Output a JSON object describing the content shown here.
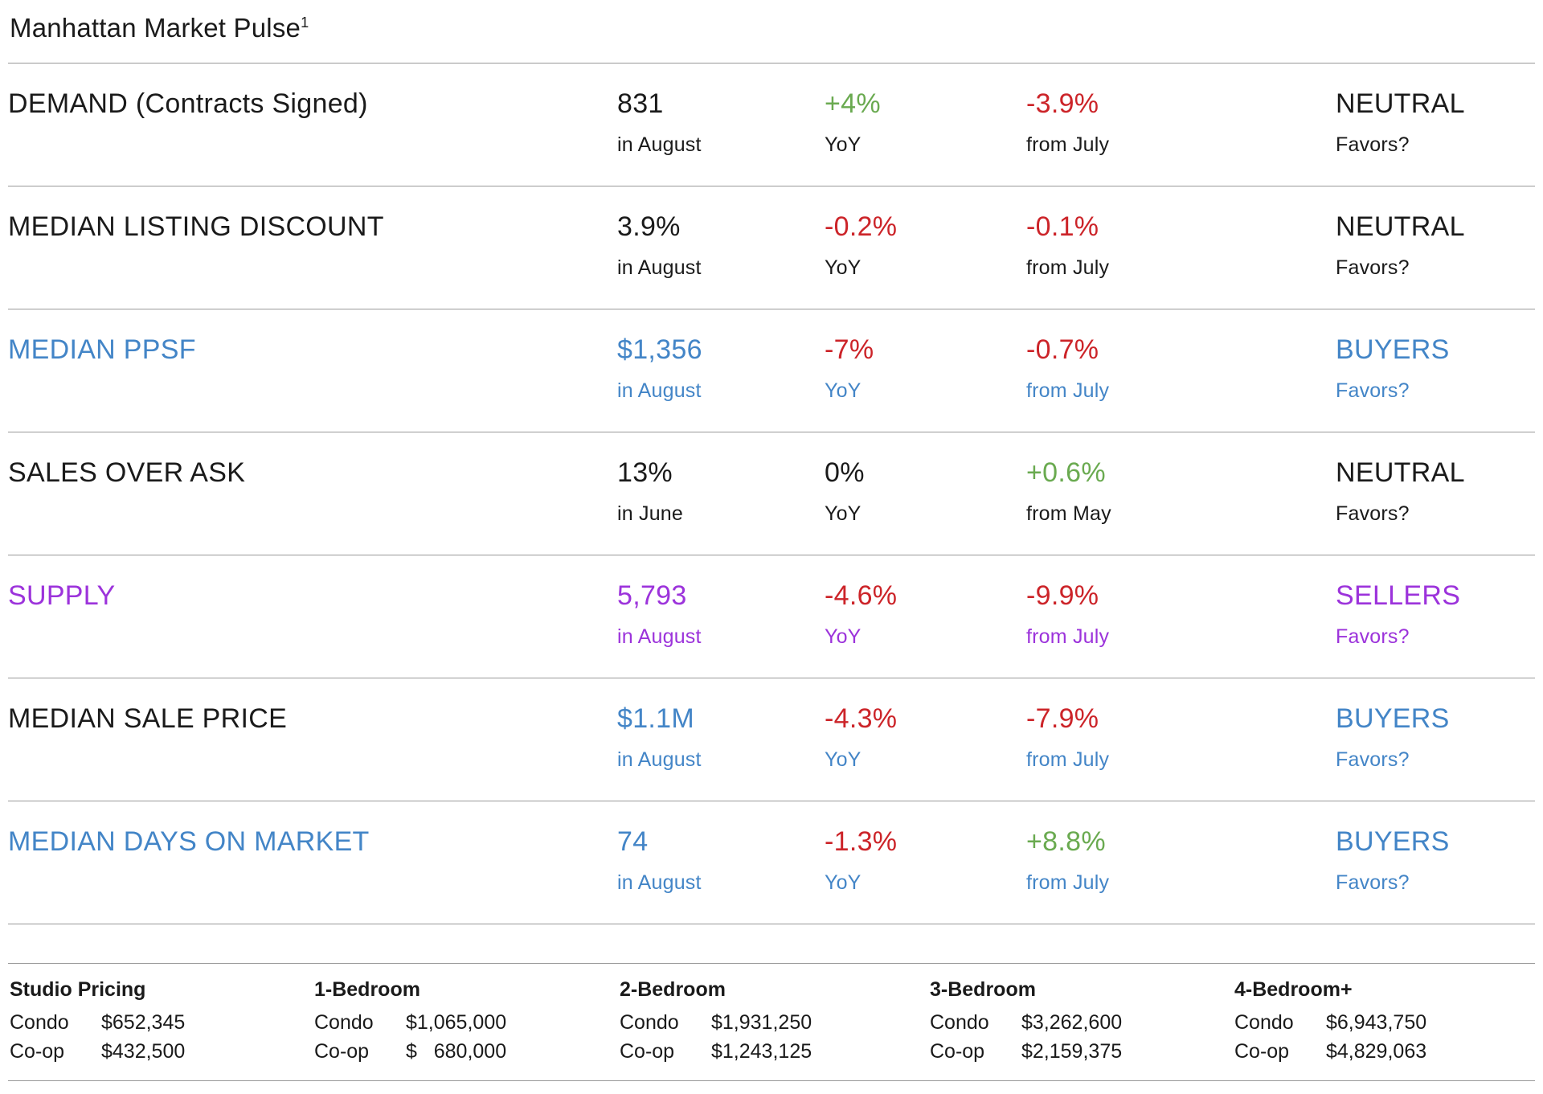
{
  "title": "Manhattan Market Pulse",
  "title_superscript": "1",
  "colors": {
    "black": "#1a1a1a",
    "blue": "#4385c7",
    "purple": "#9c33db",
    "green": "#6aaa50",
    "red": "#cc2429"
  },
  "metrics": [
    {
      "name": "DEMAND (Contracts Signed)",
      "name_color": "black",
      "value": "831",
      "value_color": "black",
      "period": "in August",
      "yoy": "+4%",
      "yoy_color": "green",
      "yoy_label": "YoY",
      "mom": "-3.9%",
      "mom_color": "red",
      "mom_label": "from July",
      "favors": "NEUTRAL",
      "favors_color": "black",
      "favors_label": "Favors?",
      "label_color": "black"
    },
    {
      "name": "MEDIAN LISTING DISCOUNT",
      "name_color": "black",
      "value": "3.9%",
      "value_color": "black",
      "period": "in August",
      "yoy": "-0.2%",
      "yoy_color": "red",
      "yoy_label": "YoY",
      "mom": "-0.1%",
      "mom_color": "red",
      "mom_label": "from July",
      "favors": "NEUTRAL",
      "favors_color": "black",
      "favors_label": "Favors?",
      "label_color": "black"
    },
    {
      "name": "MEDIAN PPSF",
      "name_color": "blue",
      "value": "$1,356",
      "value_color": "blue",
      "period": "in August",
      "yoy": "-7%",
      "yoy_color": "red",
      "yoy_label": "YoY",
      "mom": "-0.7%",
      "mom_color": "red",
      "mom_label": "from July",
      "favors": "BUYERS",
      "favors_color": "blue",
      "favors_label": "Favors?",
      "label_color": "blue"
    },
    {
      "name": "SALES OVER ASK",
      "name_color": "black",
      "value": "13%",
      "value_color": "black",
      "period": "in June",
      "yoy": "0%",
      "yoy_color": "black",
      "yoy_label": "YoY",
      "mom": "+0.6%",
      "mom_color": "green",
      "mom_label": "from May",
      "favors": "NEUTRAL",
      "favors_color": "black",
      "favors_label": "Favors?",
      "label_color": "black"
    },
    {
      "name": "SUPPLY",
      "name_color": "purple",
      "value": "5,793",
      "value_color": "purple",
      "period": "in August",
      "yoy": "-4.6%",
      "yoy_color": "red",
      "yoy_label": "YoY",
      "mom": "-9.9%",
      "mom_color": "red",
      "mom_label": "from July",
      "favors": "SELLERS",
      "favors_color": "purple",
      "favors_label": "Favors?",
      "label_color": "purple"
    },
    {
      "name": "MEDIAN SALE PRICE",
      "name_color": "black",
      "value": "$1.1M",
      "value_color": "blue",
      "period": "in August",
      "yoy": "-4.3%",
      "yoy_color": "red",
      "yoy_label": "YoY",
      "mom": "-7.9%",
      "mom_color": "red",
      "mom_label": "from July",
      "favors": "BUYERS",
      "favors_color": "blue",
      "favors_label": "Favors?",
      "label_color": "blue"
    },
    {
      "name": "MEDIAN DAYS ON MARKET",
      "name_color": "blue",
      "value": "74",
      "value_color": "blue",
      "period": "in August",
      "yoy": "-1.3%",
      "yoy_color": "red",
      "yoy_label": "YoY",
      "mom": "+8.8%",
      "mom_color": "green",
      "mom_label": "from July",
      "favors": "BUYERS",
      "favors_color": "blue",
      "favors_label": "Favors?",
      "label_color": "blue"
    }
  ],
  "pricing": [
    {
      "header": "Studio Pricing",
      "rows": [
        {
          "label": "Condo",
          "price": "$652,345"
        },
        {
          "label": "Co-op",
          "price": "$432,500"
        }
      ]
    },
    {
      "header": "1-Bedroom",
      "rows": [
        {
          "label": "Condo",
          "price": "$1,065,000"
        },
        {
          "label": "Co-op",
          "price": "$   680,000"
        }
      ]
    },
    {
      "header": "2-Bedroom",
      "rows": [
        {
          "label": "Condo",
          "price": "$1,931,250"
        },
        {
          "label": "Co-op",
          "price": "$1,243,125"
        }
      ]
    },
    {
      "header": "3-Bedroom",
      "rows": [
        {
          "label": "Condo",
          "price": "$3,262,600"
        },
        {
          "label": "Co-op",
          "price": "$2,159,375"
        }
      ]
    },
    {
      "header": "4-Bedroom+",
      "rows": [
        {
          "label": "Condo",
          "price": "$6,943,750"
        },
        {
          "label": "Co-op",
          "price": "$4,829,063"
        }
      ]
    }
  ]
}
